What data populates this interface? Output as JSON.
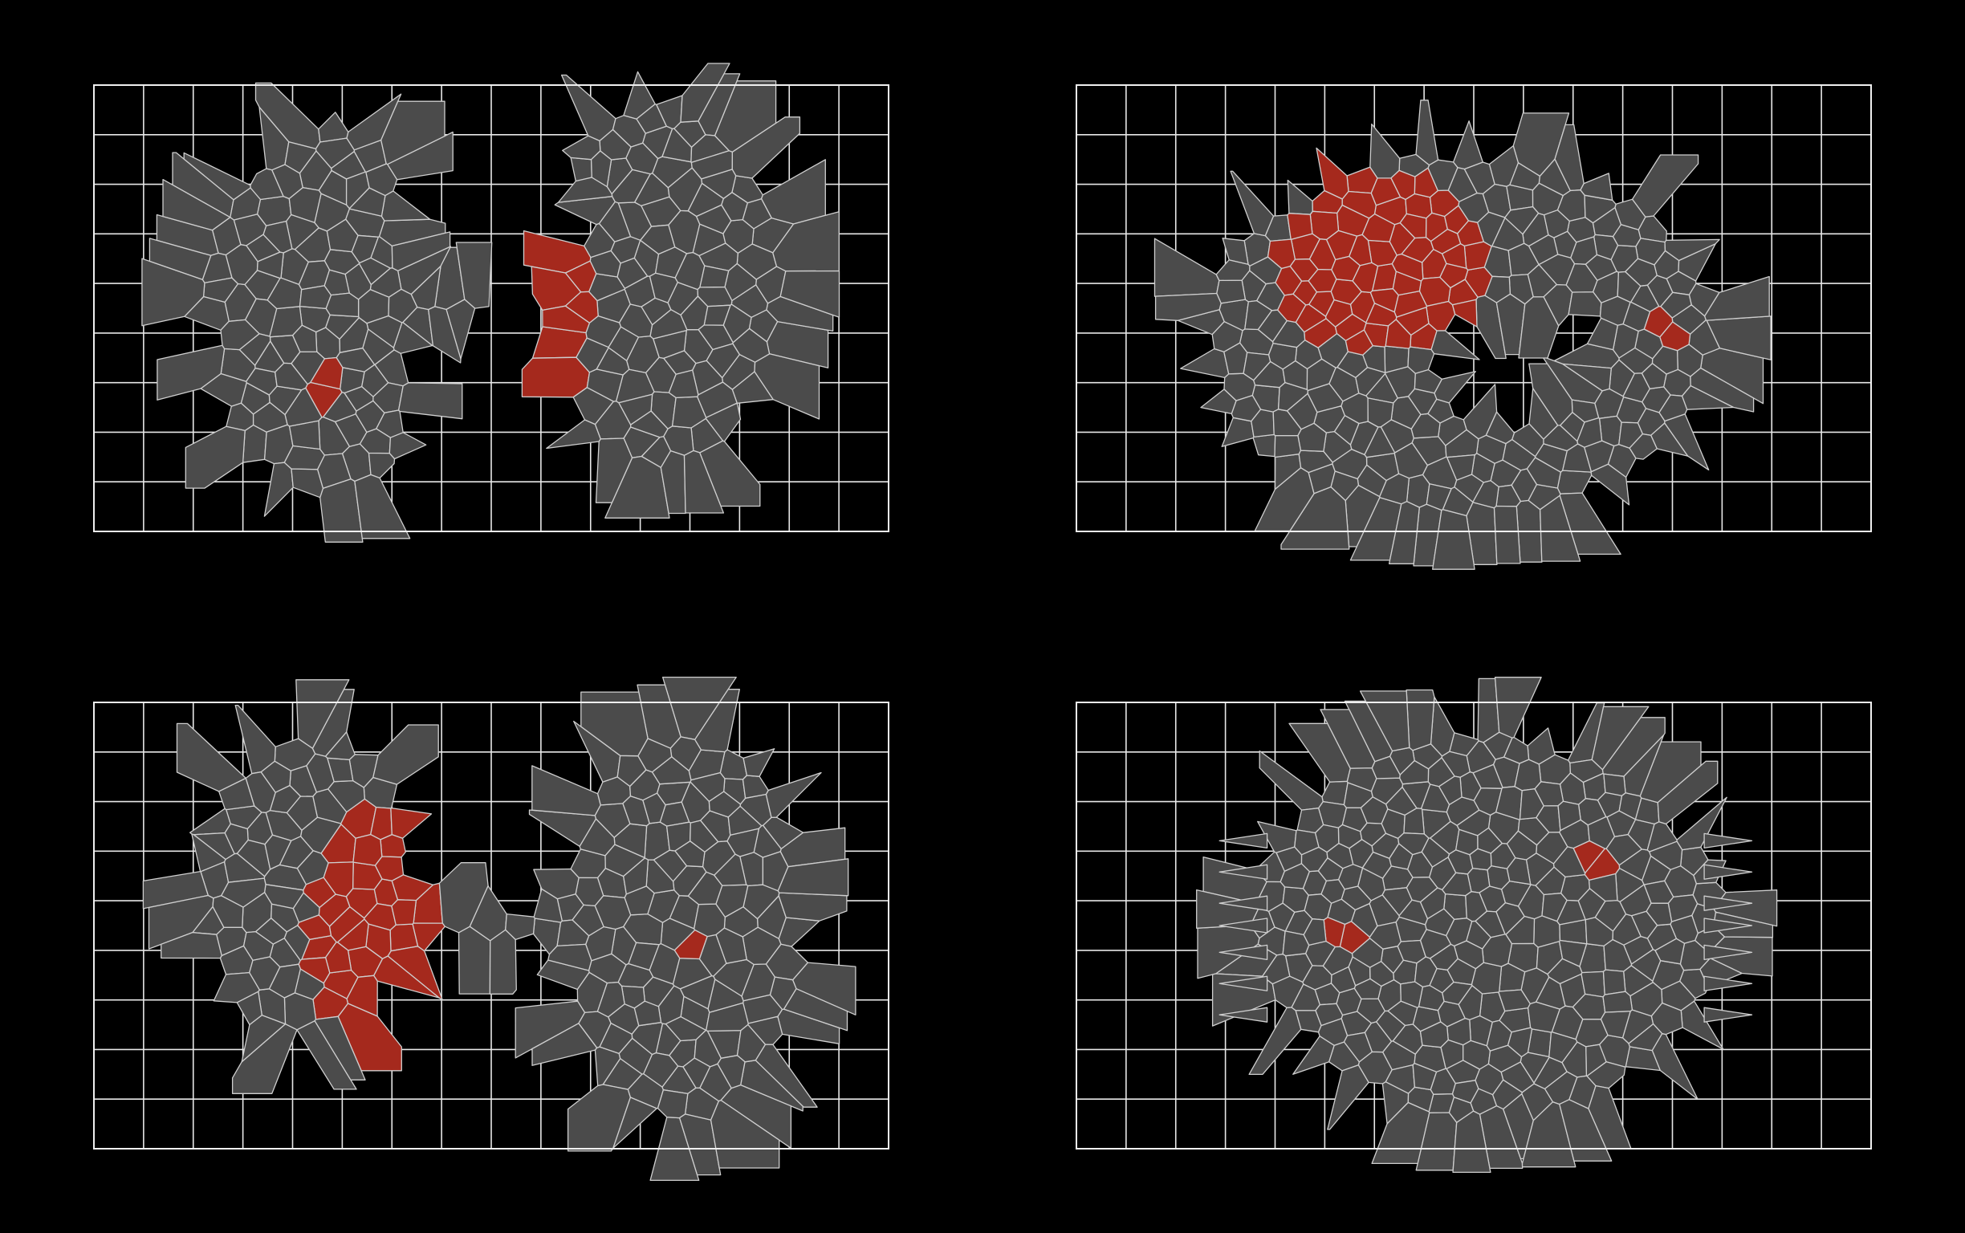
{
  "figure": {
    "background_color": "#000000",
    "grid_line_color": "#e8e8e8",
    "cell_fill_color": "#4b4b4b",
    "cell_edge_color": "#cfcfcf",
    "highlight_fill_color": "#a5291d",
    "grid_columns": 16,
    "grid_rows": 9,
    "panels": [
      {
        "id": "top-left",
        "layout": "two-hemispheres-bridged",
        "highlight_regions": 2
      },
      {
        "id": "top-right",
        "layout": "ring",
        "highlight_regions": 2
      },
      {
        "id": "bottom-left",
        "layout": "two-hemispheres-bridged",
        "highlight_regions": 2
      },
      {
        "id": "bottom-right",
        "layout": "disk",
        "highlight_regions": 2
      }
    ]
  }
}
